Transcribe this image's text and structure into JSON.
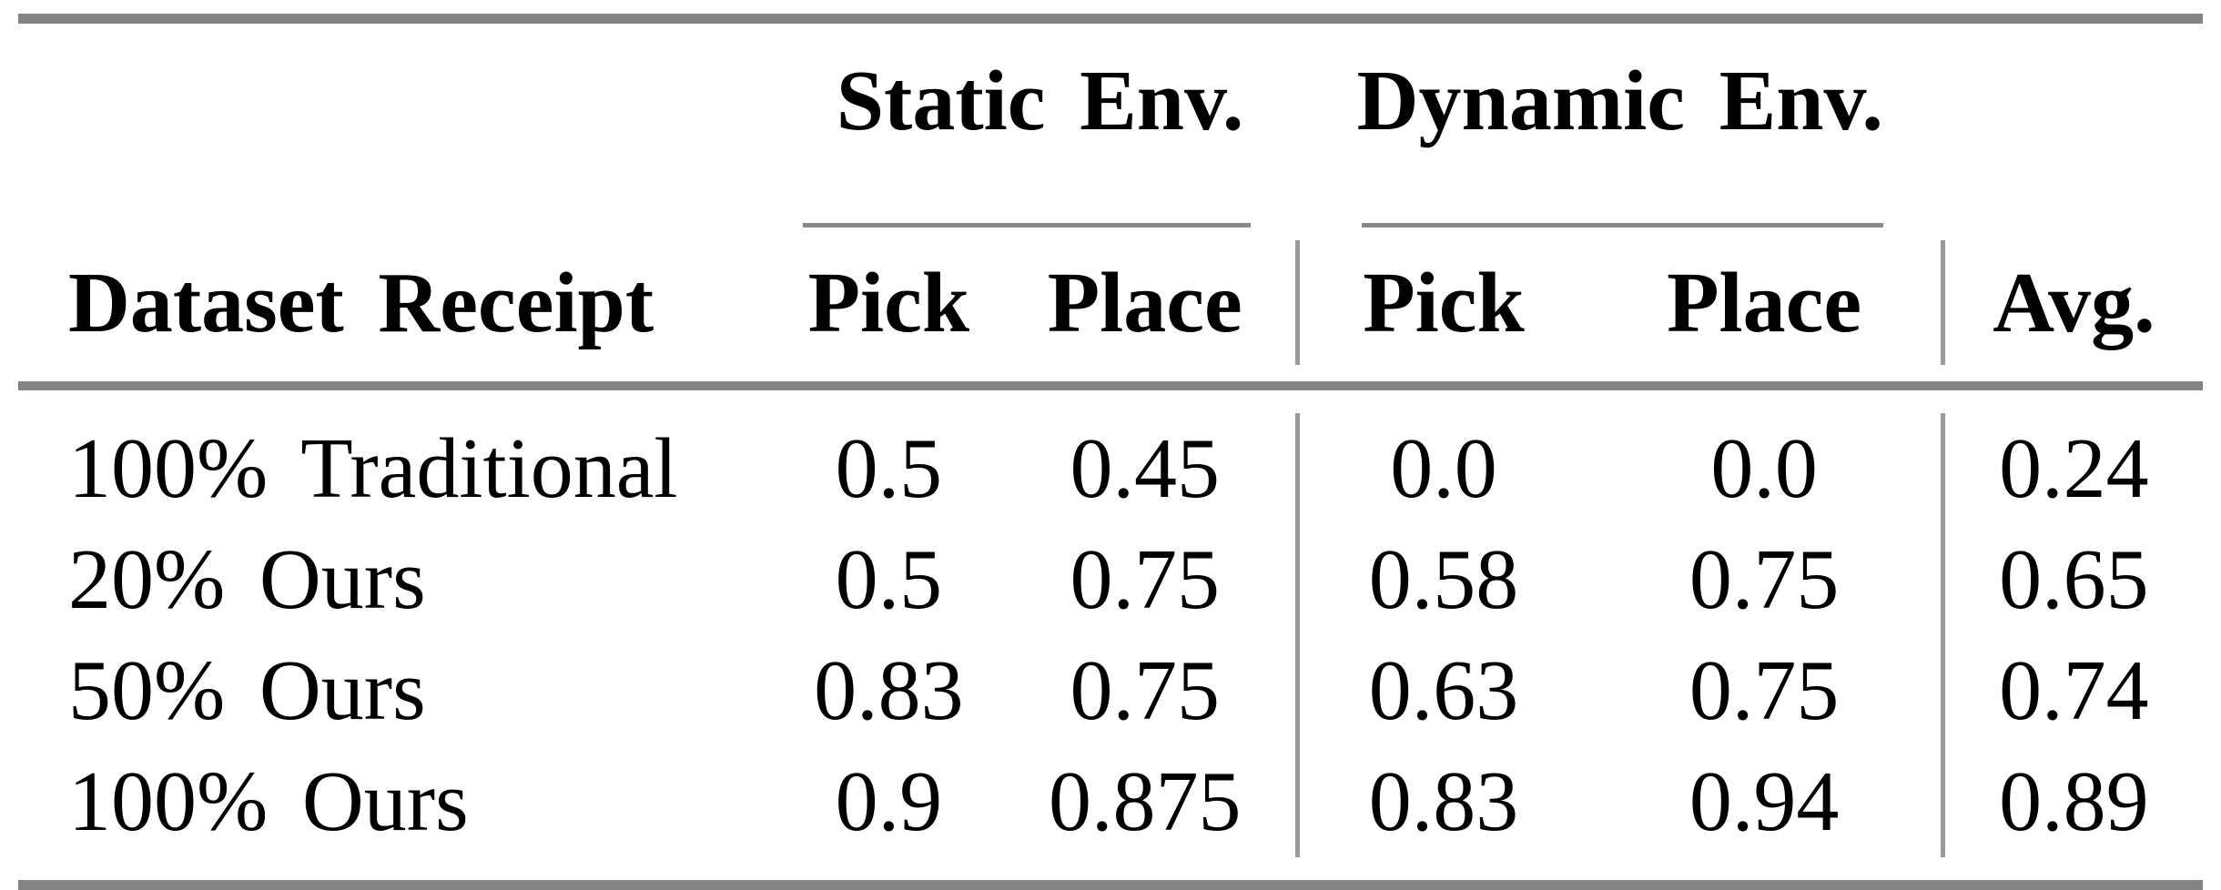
{
  "table": {
    "column_groups": [
      {
        "label": "Static Env."
      },
      {
        "label": "Dynamic Env."
      }
    ],
    "headers": {
      "row_label": "Dataset Receipt",
      "static_pick": "Pick",
      "static_place": "Place",
      "dynamic_pick": "Pick",
      "dynamic_place": "Place",
      "avg": "Avg."
    },
    "rows": [
      {
        "label": "100% Traditional",
        "static_pick": "0.5",
        "static_place": "0.45",
        "dynamic_pick": "0.0",
        "dynamic_place": "0.0",
        "avg": "0.24"
      },
      {
        "label": "20% Ours",
        "static_pick": "0.5",
        "static_place": "0.75",
        "dynamic_pick": "0.58",
        "dynamic_place": "0.75",
        "avg": "0.65"
      },
      {
        "label": "50% Ours",
        "static_pick": "0.83",
        "static_place": "0.75",
        "dynamic_pick": "0.63",
        "dynamic_place": "0.75",
        "avg": "0.74"
      },
      {
        "label": "100% Ours",
        "static_pick": "0.9",
        "static_place": "0.875",
        "dynamic_pick": "0.83",
        "dynamic_place": "0.94",
        "avg": "0.89"
      }
    ]
  },
  "colors": {
    "rule_gray": "#848484",
    "cmidrule_gray": "#8a8a8a",
    "vertical_rule_gray": "#9a9a9a",
    "text": "#000000",
    "background": "#ffffff"
  }
}
